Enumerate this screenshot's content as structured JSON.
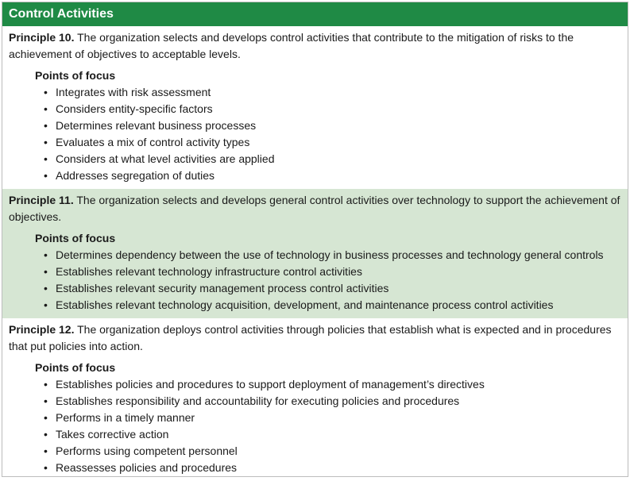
{
  "header": {
    "title": "Control Activities"
  },
  "principles": [
    {
      "title": "Principle 10.",
      "text": " The organization selects and develops control activities that contribute to the mitigation of risks to the achievement of objectives to acceptable levels.",
      "focus_label": "Points of focus",
      "points": [
        "Integrates with risk assessment",
        "Considers entity-specific factors",
        "Determines relevant business processes",
        "Evaluates a mix of control activity types",
        "Considers at what level activities are applied",
        "Addresses segregation of duties"
      ]
    },
    {
      "title": "Principle 11.",
      "text": " The organization selects and develops general control activities over technology to support the achievement of objectives.",
      "focus_label": "Points of focus",
      "points": [
        "Determines dependency between the use of technology in business processes and technology general controls",
        "Establishes relevant technology infrastructure control activities",
        "Establishes relevant security management process control activities",
        "Establishes relevant technology acquisition, development, and maintenance process control activities"
      ]
    },
    {
      "title": "Principle 12.",
      "text": " The organization deploys control activities through policies that establish what is expected and in procedures that put policies into action.",
      "focus_label": "Points of focus",
      "points": [
        "Establishes policies and procedures to support deployment of management’s directives",
        "Establishes responsibility and accountability for executing policies and procedures",
        "Performs in a timely manner",
        "Takes corrective action",
        "Performs using competent personnel",
        "Reassesses policies and procedures"
      ]
    }
  ],
  "colors": {
    "header_bg": "#1f8a45",
    "shaded_bg": "#d6e6d3"
  },
  "bullet": "•"
}
